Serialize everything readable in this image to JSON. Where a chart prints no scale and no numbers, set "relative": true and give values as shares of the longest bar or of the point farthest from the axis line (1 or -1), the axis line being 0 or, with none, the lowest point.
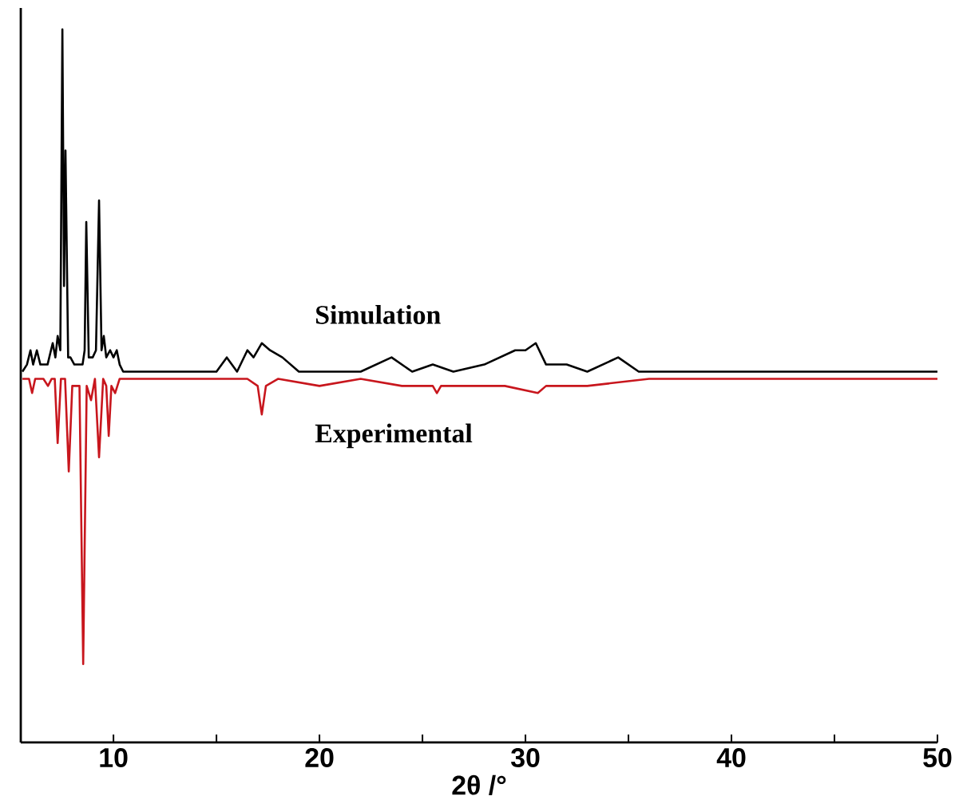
{
  "chart_data": {
    "type": "line",
    "relative": true,
    "xlabel": "2θ /°",
    "xlim": [
      5.5,
      50
    ],
    "xticks": [
      10,
      {
        "value": 15,
        "label": null
      },
      20,
      {
        "value": 25,
        "label": null
      },
      30,
      {
        "value": 35,
        "label": null
      },
      40,
      {
        "value": 45,
        "label": null
      },
      50
    ],
    "tick_labels": "x",
    "grid": false,
    "series": [
      {
        "name": "Simulation",
        "color": "#000000",
        "x": [
          5.58,
          5.8,
          5.97,
          6.1,
          6.28,
          6.45,
          6.59,
          6.8,
          7.05,
          7.18,
          7.29,
          7.42,
          7.52,
          7.6,
          7.67,
          7.8,
          7.91,
          8.1,
          8.29,
          8.5,
          8.6,
          8.68,
          8.8,
          8.99,
          9.15,
          9.3,
          9.42,
          9.53,
          9.65,
          9.84,
          10.0,
          10.16,
          10.3,
          10.47,
          11.0,
          12.0,
          13.0,
          14.0,
          15.0,
          15.5,
          16.0,
          16.5,
          16.8,
          17.2,
          17.6,
          18.2,
          19.0,
          20.0,
          21.0,
          22.0,
          23.5,
          24.5,
          25.5,
          26.5,
          28.0,
          29.5,
          30.0,
          30.5,
          31.0,
          32.0,
          33.0,
          34.5,
          35.5,
          37.0,
          40.0,
          43.0,
          46.0,
          50.0
        ],
        "values": [
          0.52,
          0.53,
          0.55,
          0.53,
          0.55,
          0.53,
          0.53,
          0.53,
          0.56,
          0.54,
          0.57,
          0.55,
          1.0,
          0.64,
          0.83,
          0.54,
          0.54,
          0.53,
          0.53,
          0.53,
          0.55,
          0.73,
          0.54,
          0.54,
          0.55,
          0.76,
          0.55,
          0.57,
          0.54,
          0.55,
          0.54,
          0.55,
          0.53,
          0.52,
          0.52,
          0.52,
          0.52,
          0.52,
          0.52,
          0.54,
          0.52,
          0.55,
          0.54,
          0.56,
          0.55,
          0.54,
          0.52,
          0.52,
          0.52,
          0.52,
          0.54,
          0.52,
          0.53,
          0.52,
          0.53,
          0.55,
          0.55,
          0.56,
          0.53,
          0.53,
          0.52,
          0.54,
          0.52,
          0.52,
          0.52,
          0.52,
          0.52,
          0.52
        ]
      },
      {
        "name": "Experimental",
        "color": "#c8161d",
        "x": [
          5.58,
          5.9,
          6.05,
          6.2,
          6.6,
          6.82,
          7.0,
          7.15,
          7.29,
          7.45,
          7.65,
          7.83,
          8.0,
          8.35,
          8.53,
          8.7,
          8.91,
          9.1,
          9.3,
          9.5,
          9.65,
          9.77,
          9.9,
          10.08,
          10.3,
          11.0,
          13.0,
          15.0,
          16.5,
          17.0,
          17.2,
          17.4,
          18.0,
          20.0,
          22.0,
          24.0,
          25.5,
          25.7,
          25.9,
          27.0,
          29.0,
          30.6,
          31.0,
          32.2,
          33.0,
          36.0,
          40.0,
          45.0,
          50.0
        ],
        "values": [
          0.51,
          0.51,
          0.49,
          0.51,
          0.51,
          0.5,
          0.51,
          0.51,
          0.42,
          0.51,
          0.51,
          0.38,
          0.5,
          0.5,
          0.11,
          0.5,
          0.48,
          0.51,
          0.4,
          0.51,
          0.5,
          0.43,
          0.5,
          0.49,
          0.51,
          0.51,
          0.51,
          0.51,
          0.51,
          0.5,
          0.46,
          0.5,
          0.51,
          0.5,
          0.51,
          0.5,
          0.5,
          0.49,
          0.5,
          0.5,
          0.5,
          0.49,
          0.5,
          0.5,
          0.5,
          0.51,
          0.51,
          0.51,
          0.51
        ]
      }
    ]
  }
}
